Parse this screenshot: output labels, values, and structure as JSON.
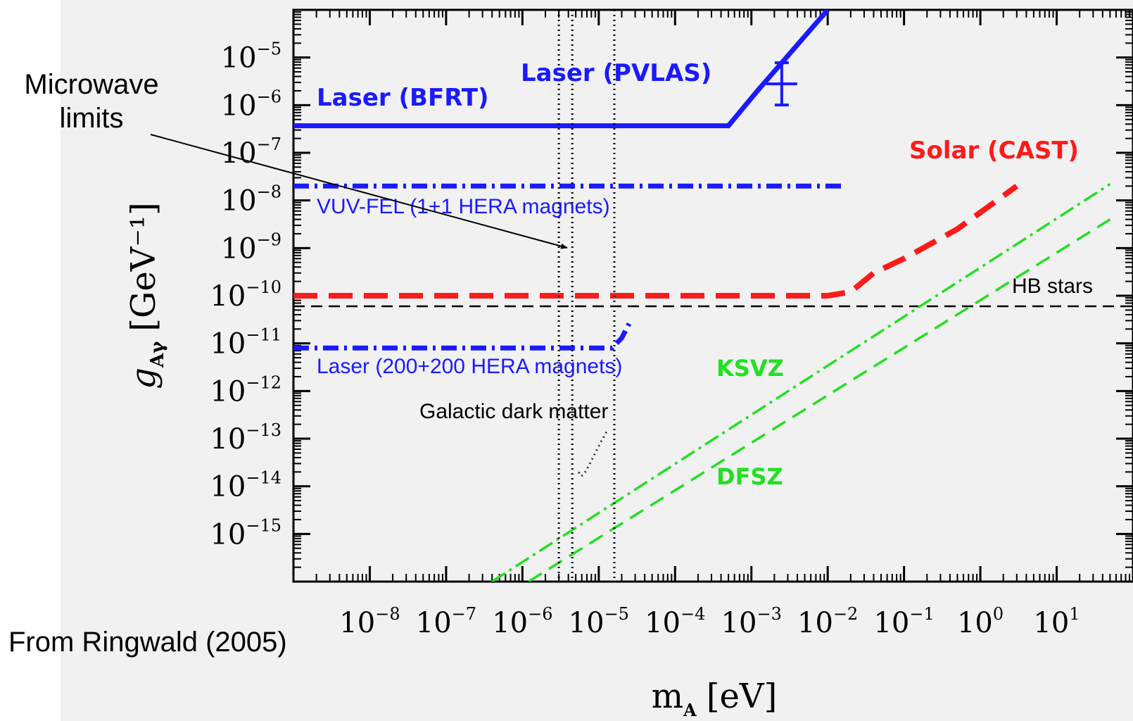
{
  "note": {
    "line1": "Microwave",
    "line2": "limits"
  },
  "source": "From Ringwald (2005)",
  "chart_data": {
    "type": "line",
    "title": "",
    "xlabel_main": "m",
    "xlabel_sub": "A",
    "xlabel_unit": "[eV]",
    "ylabel_main": "g",
    "ylabel_sub": "Aγ",
    "ylabel_unit": "[GeV⁻¹]",
    "xscale": "log",
    "yscale": "log",
    "xlim": [
      1e-09,
      100.0
    ],
    "ylim": [
      1e-16,
      0.0001
    ],
    "xticks": [
      {
        "v": 1e-08,
        "base": "10",
        "exp": "−8"
      },
      {
        "v": 1e-07,
        "base": "10",
        "exp": "−7"
      },
      {
        "v": 1e-06,
        "base": "10",
        "exp": "−6"
      },
      {
        "v": 1e-05,
        "base": "10",
        "exp": "−5"
      },
      {
        "v": 0.0001,
        "base": "10",
        "exp": "−4"
      },
      {
        "v": 0.001,
        "base": "10",
        "exp": "−3"
      },
      {
        "v": 0.01,
        "base": "10",
        "exp": "−2"
      },
      {
        "v": 0.1,
        "base": "10",
        "exp": "−1"
      },
      {
        "v": 1,
        "base": "10",
        "exp": "0"
      },
      {
        "v": 10,
        "base": "10",
        "exp": "1"
      }
    ],
    "yticks": [
      {
        "v": 1e-05,
        "base": "10",
        "exp": "−5"
      },
      {
        "v": 1e-06,
        "base": "10",
        "exp": "−6"
      },
      {
        "v": 1e-07,
        "base": "10",
        "exp": "−7"
      },
      {
        "v": 1e-08,
        "base": "10",
        "exp": "−8"
      },
      {
        "v": 1e-09,
        "base": "10",
        "exp": "−9"
      },
      {
        "v": 1e-10,
        "base": "10",
        "exp": "−10"
      },
      {
        "v": 1e-11,
        "base": "10",
        "exp": "−11"
      },
      {
        "v": 1e-12,
        "base": "10",
        "exp": "−12"
      },
      {
        "v": 1e-13,
        "base": "10",
        "exp": "−13"
      },
      {
        "v": 1e-14,
        "base": "10",
        "exp": "−14"
      },
      {
        "v": 1e-15,
        "base": "10",
        "exp": "−15"
      }
    ],
    "series": [
      {
        "name": "Laser (BFRT)",
        "color": "#1a1aff",
        "style": "solid",
        "x": [
          1e-09,
          0.0005,
          0.0012,
          0.01
        ],
        "y": [
          3.7e-07,
          3.7e-07,
          2e-06,
          0.0001
        ]
      },
      {
        "name": "Laser (PVLAS)",
        "color": "#1a1aff",
        "style": "errorbar",
        "x": [
          0.0025
        ],
        "y": [
          2.8e-06
        ]
      },
      {
        "name": "VUV-FEL (1+1 HERA magnets)",
        "color": "#1a1aff",
        "style": "dashdot",
        "x": [
          1e-09,
          0.015
        ],
        "y": [
          2e-08,
          2e-08
        ]
      },
      {
        "name": "Laser (200+200 HERA magnets)",
        "color": "#1a1aff",
        "style": "dashdot",
        "x": [
          1e-09,
          1.5e-05,
          2e-05,
          2.5e-05
        ],
        "y": [
          8e-12,
          8e-12,
          1.3e-11,
          2.6e-11
        ]
      },
      {
        "name": "Solar (CAST)",
        "color": "#ff1a1a",
        "style": "dashed",
        "x": [
          1e-09,
          0.01,
          0.02,
          0.04,
          0.1,
          0.5,
          3
        ],
        "y": [
          1e-10,
          1e-10,
          1.2e-10,
          3e-10,
          6e-10,
          2.5e-09,
          2e-08
        ]
      },
      {
        "name": "HB stars",
        "color": "#000000",
        "style": "dashed",
        "x": [
          1e-09,
          100.0
        ],
        "y": [
          6e-11,
          6e-11
        ]
      },
      {
        "name": "KSVZ",
        "color": "#22e022",
        "style": "dashdot",
        "x": [
          4e-07,
          50
        ],
        "y": [
          1e-16,
          2.2e-08
        ]
      },
      {
        "name": "DFSZ",
        "color": "#22e022",
        "style": "dashed",
        "x": [
          1.2e-06,
          50
        ],
        "y": [
          1e-16,
          4e-09
        ]
      },
      {
        "name": "Galactic dark matter",
        "color": "#000000",
        "style": "dotted",
        "x": [
          3e-06,
          4.5e-06,
          1.6e-05
        ],
        "y": [
          0.0001,
          0.0001,
          0.0001
        ]
      }
    ],
    "annotations": [
      {
        "text": "Laser (BFRT)",
        "color": "#1a1aff"
      },
      {
        "text": "Laser (PVLAS)",
        "color": "#1a1aff"
      },
      {
        "text": "VUV-FEL (1+1 HERA magnets)",
        "color": "#1a1aff"
      },
      {
        "text": "Solar (CAST)",
        "color": "#ff1a1a"
      },
      {
        "text": "HB stars",
        "color": "#000000"
      },
      {
        "text": "Laser (200+200 HERA magnets)",
        "color": "#1a1aff"
      },
      {
        "text": "KSVZ",
        "color": "#22e022"
      },
      {
        "text": "Galactic dark matter",
        "color": "#000000"
      },
      {
        "text": "DFSZ",
        "color": "#22e022"
      }
    ]
  }
}
